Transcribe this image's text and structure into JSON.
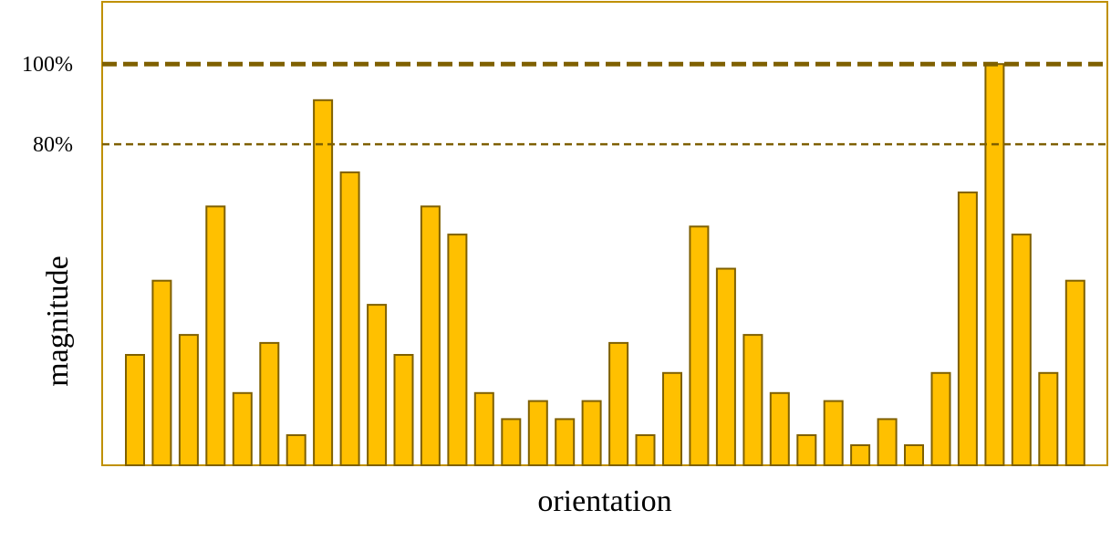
{
  "chart_data": {
    "type": "bar",
    "title": "",
    "xlabel": "orientation",
    "ylabel": "magnitude",
    "ylim": [
      0,
      115.5
    ],
    "unit": "%",
    "values": [
      27.5,
      46,
      32.5,
      64.5,
      18,
      30.5,
      7.5,
      91,
      73,
      40,
      27.5,
      64.5,
      57.5,
      18,
      11.5,
      16,
      11.5,
      16,
      30.5,
      7.5,
      23,
      59.5,
      49,
      32.5,
      18,
      7.5,
      16,
      5,
      11.5,
      5,
      23,
      68,
      100,
      57.5,
      23,
      46
    ],
    "reference_lines": [
      {
        "label": "100%",
        "value": 100,
        "style": "bold-dashed"
      },
      {
        "label": "80%",
        "value": 80,
        "style": "dashed"
      }
    ],
    "grid": false,
    "legend": "none",
    "colors": {
      "bar_fill": "#FFC000",
      "bar_stroke": "#7F6000",
      "frame": "#BF9000",
      "reference_line": "#7F6000"
    }
  }
}
